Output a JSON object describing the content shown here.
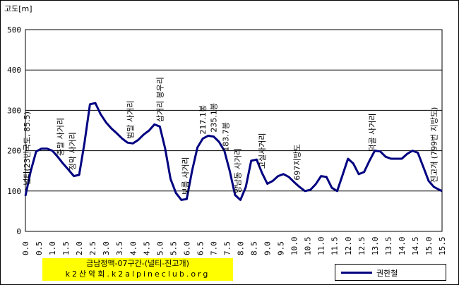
{
  "chart_data": {
    "type": "line",
    "ylabel": "고도[m]",
    "ylim": [
      0,
      500
    ],
    "yticks": [
      "0",
      "100",
      "200",
      "300",
      "400",
      "500"
    ],
    "xlim": [
      0,
      15.5
    ],
    "xticks": [
      "0.0",
      "0.5",
      "1.0",
      "1.5",
      "2.0",
      "2.5",
      "3.0",
      "3.5",
      "4.0",
      "4.5",
      "5.0",
      "5.5",
      "6.0",
      "6.5",
      "7.0",
      "7.5",
      "8.0",
      "8.5",
      "9.0",
      "9.5",
      "10.0",
      "10.5",
      "11.0",
      "11.5",
      "12.0",
      "12.5",
      "13.0",
      "13.5",
      "14.0",
      "14.5",
      "15.0",
      "15.5"
    ],
    "grid": "horizontal",
    "title_lines": [
      "금남정맥-07구간-(널티-진고개)",
      "k2산악회.k2alpineclub.org"
    ],
    "series": [
      {
        "name": "권한철",
        "color": "#000080",
        "x": [
          0,
          0.2,
          0.4,
          0.6,
          0.8,
          1.0,
          1.2,
          1.4,
          1.6,
          1.8,
          2.0,
          2.2,
          2.4,
          2.6,
          2.8,
          3.0,
          3.2,
          3.4,
          3.6,
          3.8,
          4.0,
          4.2,
          4.4,
          4.6,
          4.8,
          5.0,
          5.2,
          5.4,
          5.6,
          5.8,
          6.0,
          6.2,
          6.4,
          6.6,
          6.8,
          7.0,
          7.2,
          7.4,
          7.6,
          7.8,
          8.0,
          8.2,
          8.4,
          8.6,
          8.8,
          9.0,
          9.2,
          9.4,
          9.6,
          9.8,
          10.0,
          10.2,
          10.4,
          10.6,
          10.8,
          11.0,
          11.2,
          11.4,
          11.6,
          11.8,
          12.0,
          12.2,
          12.4,
          12.6,
          12.8,
          13.0,
          13.2,
          13.4,
          13.6,
          13.8,
          14.0,
          14.2,
          14.4,
          14.6,
          14.8,
          15.0,
          15.2,
          15.4,
          15.5
        ],
        "values": [
          88,
          150,
          198,
          205,
          205,
          200,
          185,
          168,
          153,
          137,
          140,
          220,
          315,
          318,
          290,
          270,
          255,
          243,
          230,
          220,
          218,
          227,
          240,
          250,
          265,
          260,
          205,
          130,
          95,
          78,
          80,
          150,
          208,
          230,
          237,
          235,
          222,
          200,
          150,
          90,
          78,
          110,
          175,
          178,
          145,
          118,
          125,
          137,
          142,
          135,
          122,
          110,
          100,
          103,
          117,
          137,
          135,
          108,
          100,
          140,
          180,
          168,
          142,
          147,
          175,
          200,
          198,
          185,
          180,
          180,
          180,
          192,
          200,
          195,
          160,
          125,
          110,
          103,
          100
        ]
      }
    ],
    "annotations": [
      {
        "text": "널티(23번국도, 85.5)",
        "x": 0.05
      },
      {
        "text": "중말 사거리",
        "x": 1.3
      },
      {
        "text": "정막 사거리",
        "x": 1.75
      },
      {
        "text": "범말 사거리",
        "x": 3.9
      },
      {
        "text": "삼거리 봉우리",
        "x": 5.0
      },
      {
        "text": "보름 사거리",
        "x": 5.95
      },
      {
        "text": "217.1봉",
        "x": 6.6
      },
      {
        "text": "235.1봉",
        "x": 7.0
      },
      {
        "text": "183.7봉",
        "x": 7.45
      },
      {
        "text": "양남동 사거리",
        "x": 7.9
      },
      {
        "text": "고실사거리",
        "x": 8.8
      },
      {
        "text": "697지방도",
        "x": 10.1
      },
      {
        "text": "덕골 사거리",
        "x": 12.9
      },
      {
        "text": "진고개 (799번 지방도)",
        "x": 15.2
      }
    ]
  }
}
